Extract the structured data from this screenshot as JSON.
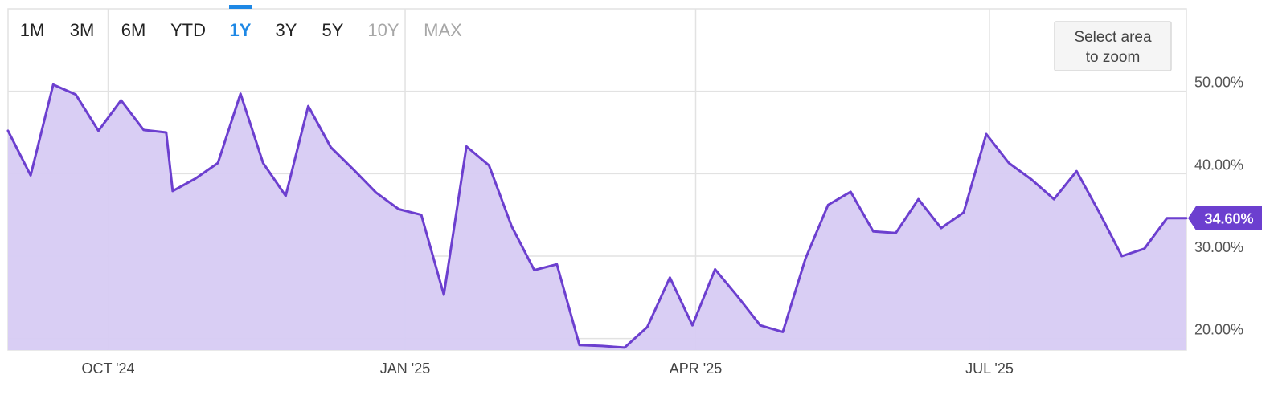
{
  "range_selector": {
    "options": [
      {
        "label": "1M",
        "state": "normal"
      },
      {
        "label": "3M",
        "state": "normal"
      },
      {
        "label": "6M",
        "state": "normal"
      },
      {
        "label": "YTD",
        "state": "normal"
      },
      {
        "label": "1Y",
        "state": "active"
      },
      {
        "label": "3Y",
        "state": "normal"
      },
      {
        "label": "5Y",
        "state": "normal"
      },
      {
        "label": "10Y",
        "state": "disabled"
      },
      {
        "label": "MAX",
        "state": "disabled"
      }
    ]
  },
  "zoom_hint": {
    "line1": "Select area",
    "line2": "to zoom"
  },
  "colors": {
    "line": "#6c3fcf",
    "area": "#d7cbf3",
    "grid": "#e2e2e2",
    "active": "#1e88e5",
    "badge": "#6c3fcf"
  },
  "chart_data": {
    "type": "area",
    "title": "",
    "xlabel": "",
    "ylabel": "",
    "x_tick_labels": [
      "OCT '24",
      "JAN '25",
      "APR '25",
      "JUL '25"
    ],
    "x_tick_dates": [
      "2024-10-01",
      "2025-01-01",
      "2025-04-01",
      "2025-07-01"
    ],
    "y_ticks": [
      20,
      30,
      40,
      50
    ],
    "y_tick_labels": [
      "20.00%",
      "30.00%",
      "40.00%",
      "50.00%"
    ],
    "ylim": [
      18.6,
      60
    ],
    "xlim": [
      "2024-08-31",
      "2025-08-31"
    ],
    "grid": true,
    "current_value_label": "34.60%",
    "series": [
      {
        "x": [
          "2024-08-31",
          "2024-09-07",
          "2024-09-14",
          "2024-09-21",
          "2024-09-28",
          "2024-10-05",
          "2024-10-12",
          "2024-10-19",
          "2024-10-21",
          "2024-10-28",
          "2024-11-04",
          "2024-11-11",
          "2024-11-18",
          "2024-11-25",
          "2024-12-02",
          "2024-12-09",
          "2024-12-16",
          "2024-12-23",
          "2024-12-30",
          "2025-01-06",
          "2025-01-13",
          "2025-01-20",
          "2025-01-27",
          "2025-02-03",
          "2025-02-10",
          "2025-02-17",
          "2025-02-24",
          "2025-03-03",
          "2025-03-10",
          "2025-03-17",
          "2025-03-24",
          "2025-03-31",
          "2025-04-07",
          "2025-04-14",
          "2025-04-21",
          "2025-04-28",
          "2025-05-05",
          "2025-05-12",
          "2025-05-19",
          "2025-05-26",
          "2025-06-02",
          "2025-06-09",
          "2025-06-16",
          "2025-06-23",
          "2025-06-30",
          "2025-07-07",
          "2025-07-14",
          "2025-07-21",
          "2025-07-28",
          "2025-08-04",
          "2025-08-11",
          "2025-08-18",
          "2025-08-25",
          "2025-08-31"
        ],
        "values": [
          45.2,
          39.8,
          50.8,
          49.6,
          45.2,
          48.9,
          45.3,
          45.0,
          37.9,
          39.4,
          41.3,
          49.7,
          41.3,
          37.3,
          48.2,
          43.2,
          40.5,
          37.7,
          35.7,
          35.0,
          25.3,
          43.3,
          41.0,
          33.6,
          28.3,
          29.0,
          19.2,
          19.1,
          18.9,
          21.4,
          27.4,
          21.6,
          28.4,
          25.1,
          21.6,
          20.8,
          29.7,
          36.2,
          37.8,
          33.0,
          32.8,
          36.9,
          33.4,
          35.3,
          44.8,
          41.3,
          39.3,
          36.9,
          40.3,
          35.3,
          30.0,
          30.9,
          34.6,
          34.6
        ]
      }
    ]
  }
}
